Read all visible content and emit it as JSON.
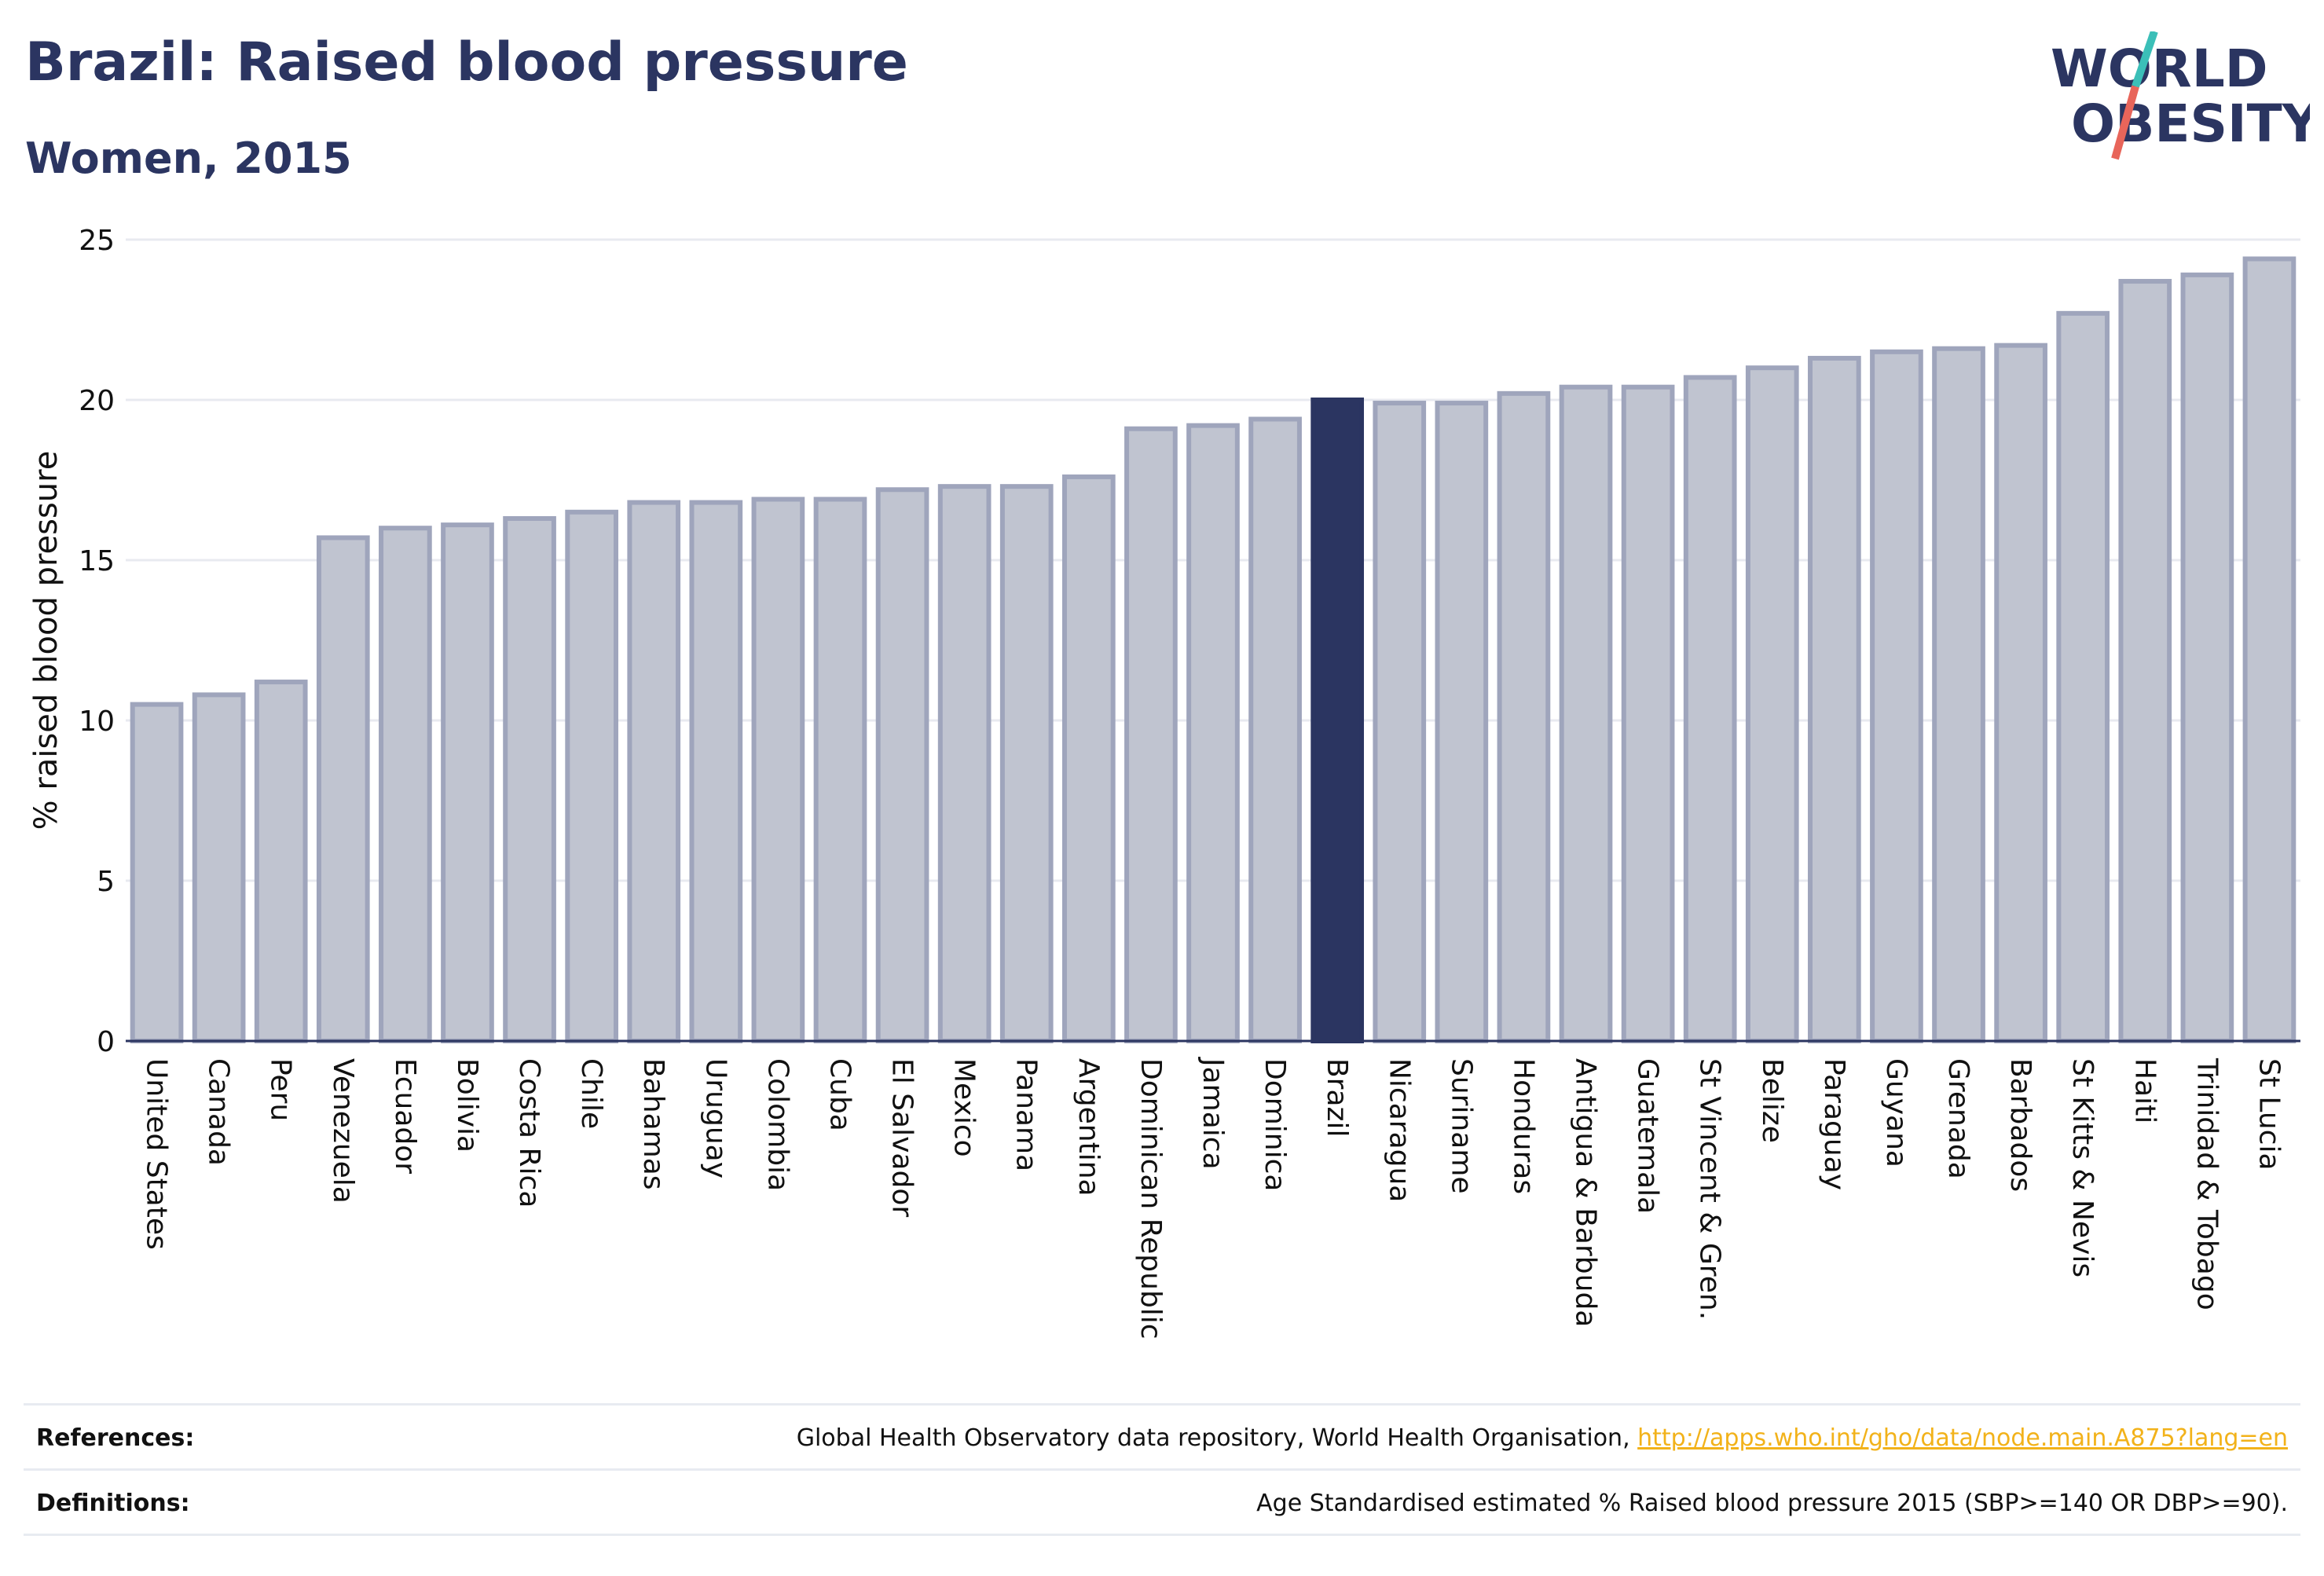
{
  "header": {
    "title": "Brazil: Raised blood pressure",
    "subtitle": "Women, 2015"
  },
  "logo": {
    "line1": "WORLD",
    "line2": "OBESITY",
    "accent_teal": "#3bbfb8",
    "accent_coral": "#e8655a"
  },
  "colors": {
    "bar_fill": "#c0c4d0",
    "bar_stroke": "#9fa5bc",
    "highlight_fill": "#2b3561",
    "text": "#2b3561",
    "link": "#f2b21a"
  },
  "chart_data": {
    "type": "bar",
    "ylabel": "% raised blood pressure",
    "ylim": [
      0,
      25
    ],
    "yticks": [
      0,
      5,
      10,
      15,
      20,
      25
    ],
    "grid": true,
    "highlight": "Brazil",
    "categories": [
      "United States",
      "Canada",
      "Peru",
      "Venezuela",
      "Ecuador",
      "Bolivia",
      "Costa Rica",
      "Chile",
      "Bahamas",
      "Uruguay",
      "Colombia",
      "Cuba",
      "El Salvador",
      "Mexico",
      "Panama",
      "Argentina",
      "Dominican Republic",
      "Jamaica",
      "Dominica",
      "Brazil",
      "Nicaragua",
      "Suriname",
      "Honduras",
      "Antigua & Barbuda",
      "Guatemala",
      "St Vincent & Gren.",
      "Belize",
      "Paraguay",
      "Guyana",
      "Grenada",
      "Barbados",
      "St Kitts & Nevis",
      "Haiti",
      "Trinidad & Tobago",
      "St Lucia"
    ],
    "values": [
      10.5,
      10.8,
      11.2,
      15.7,
      16.0,
      16.1,
      16.3,
      16.5,
      16.8,
      16.8,
      16.9,
      16.9,
      17.2,
      17.3,
      17.3,
      17.6,
      19.1,
      19.2,
      19.4,
      20.0,
      19.9,
      19.9,
      20.2,
      20.4,
      20.4,
      20.7,
      21.0,
      21.3,
      21.5,
      21.6,
      21.7,
      22.7,
      23.7,
      23.9,
      24.4
    ]
  },
  "footer": {
    "references_label": "References:",
    "references_text": "Global Health Observatory data repository, World Health Organisation, ",
    "references_link": "http://apps.who.int/gho/data/node.main.A875?lang=en",
    "definitions_label": "Definitions:",
    "definitions_text": "Age Standardised estimated % Raised blood pressure 2015 (SBP>=140 OR DBP>=90)."
  }
}
